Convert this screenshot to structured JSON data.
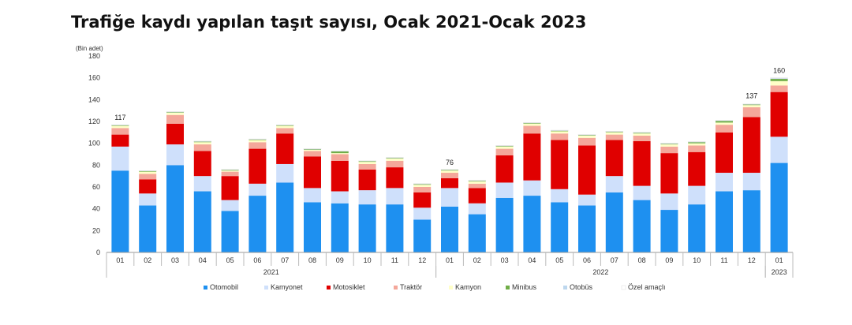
{
  "chart_data": {
    "type": "bar",
    "stacked": true,
    "title": "Trafiğe kaydı yapılan taşıt sayısı, Ocak 2021-Ocak 2023",
    "unit_label": "(Bin adet)",
    "ylim": [
      0,
      180
    ],
    "yticks": [
      0,
      20,
      40,
      60,
      80,
      100,
      120,
      140,
      160,
      180
    ],
    "grid": false,
    "legend_position": "bottom",
    "categories": [
      "01",
      "02",
      "03",
      "04",
      "05",
      "06",
      "07",
      "08",
      "09",
      "10",
      "11",
      "12",
      "01",
      "02",
      "03",
      "04",
      "05",
      "06",
      "07",
      "08",
      "09",
      "10",
      "11",
      "12",
      "01"
    ],
    "year_groups": [
      {
        "label": "2021",
        "start": 0,
        "end": 11
      },
      {
        "label": "2022",
        "start": 12,
        "end": 23
      },
      {
        "label": "2023",
        "start": 24,
        "end": 24
      }
    ],
    "data_labels": [
      {
        "index": 0,
        "text": "117",
        "value": 117
      },
      {
        "index": 12,
        "text": "76",
        "value": 76
      },
      {
        "index": 23,
        "text": "137",
        "value": 137
      },
      {
        "index": 24,
        "text": "160",
        "value": 160
      }
    ],
    "series": [
      {
        "name": "Otomobil",
        "color": "#1e90f0",
        "values": [
          75,
          43,
          80,
          56,
          38,
          52,
          64,
          46,
          45,
          44,
          44,
          30,
          42,
          35,
          50,
          52,
          46,
          43,
          55,
          48,
          39,
          44,
          56,
          57,
          82
        ]
      },
      {
        "name": "Kamyonet",
        "color": "#cfe0fb",
        "values": [
          22,
          11,
          19,
          14,
          10,
          11,
          17,
          13,
          11,
          13,
          15,
          11,
          17,
          10,
          14,
          14,
          12,
          10,
          15,
          13,
          15,
          17,
          17,
          16,
          24
        ]
      },
      {
        "name": "Motosiklet",
        "color": "#e00000",
        "values": [
          11,
          13,
          19,
          23,
          22,
          32,
          28,
          29,
          28,
          19,
          19,
          14,
          9,
          14,
          25,
          43,
          45,
          45,
          33,
          41,
          37,
          31,
          37,
          51,
          41
        ]
      },
      {
        "name": "Traktör",
        "color": "#f4a79a",
        "values": [
          6,
          5,
          8,
          6,
          4,
          6,
          5,
          5,
          6,
          5,
          6,
          5,
          5,
          4,
          6,
          7,
          6,
          7,
          5,
          5,
          6,
          6,
          7,
          9,
          6
        ]
      },
      {
        "name": "Kamyon",
        "color": "#ffffc8",
        "values": [
          2,
          2,
          2,
          2,
          1,
          2,
          2,
          1,
          1,
          2,
          2,
          2,
          2,
          2,
          2,
          2,
          2,
          2,
          2,
          2,
          2,
          2,
          2,
          2,
          4
        ]
      },
      {
        "name": "Minibus",
        "color": "#70ad47",
        "values": [
          0.5,
          0.5,
          0.5,
          0.5,
          0.5,
          0.5,
          0.5,
          0.5,
          1.5,
          0.5,
          0.5,
          0.5,
          0.5,
          0.5,
          0.5,
          0.5,
          0.5,
          0.5,
          0.5,
          0.5,
          0.5,
          1,
          1.5,
          0.5,
          2
        ]
      },
      {
        "name": "Otobüs",
        "color": "#bdd7ee",
        "values": [
          0.3,
          0.3,
          0.3,
          0.3,
          0.3,
          0.3,
          0.3,
          0.3,
          0.3,
          0.3,
          0.3,
          0.3,
          0.3,
          0.3,
          0.3,
          0.3,
          0.3,
          0.3,
          0.3,
          0.3,
          0.3,
          0.3,
          0.3,
          0.3,
          0.5
        ]
      },
      {
        "name": "Özel amaçlı",
        "color": "#ffffff",
        "values": [
          0.2,
          0.2,
          0.2,
          0.2,
          0.2,
          0.2,
          0.2,
          0.2,
          0.2,
          0.2,
          0.2,
          0.2,
          0.2,
          0.2,
          0.2,
          0.2,
          0.2,
          0.2,
          0.2,
          0.2,
          0.2,
          0.2,
          0.2,
          0.2,
          0.5
        ]
      }
    ]
  }
}
